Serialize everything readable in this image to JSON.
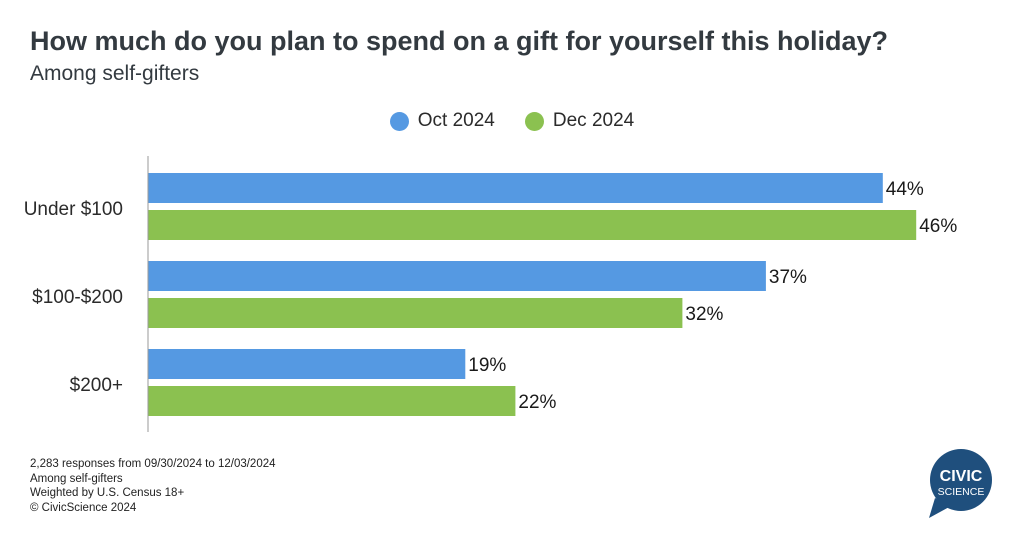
{
  "title": "How much do you plan to spend on a gift for yourself this holiday?",
  "subtitle": "Among self-gifters",
  "legend": [
    {
      "label": "Oct 2024",
      "color": "#5599e2"
    },
    {
      "label": "Dec 2024",
      "color": "#8bc150"
    }
  ],
  "chart_data": {
    "type": "bar",
    "orientation": "horizontal",
    "categories": [
      "Under $100",
      "$100-$200",
      "$200+"
    ],
    "series": [
      {
        "name": "Oct 2024",
        "values": [
          44,
          37,
          19
        ],
        "color": "#5599e2"
      },
      {
        "name": "Dec 2024",
        "values": [
          46,
          32,
          22
        ],
        "color": "#8bc150"
      }
    ],
    "value_suffix": "%",
    "legend_position": "top-center",
    "grid": false
  },
  "footnotes": [
    "2,283 responses from 09/30/2024 to 12/03/2024",
    "Among self-gifters",
    "Weighted by U.S. Census 18+",
    "© CivicScience 2024"
  ],
  "logo": {
    "line1": "CIVIC",
    "line2": "SCIENCE",
    "color": "#1f4f7d"
  }
}
